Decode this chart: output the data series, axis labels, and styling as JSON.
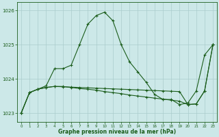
{
  "xlabel": "Graphe pression niveau de la mer (hPa)",
  "background_color": "#cce8e8",
  "line_color": "#1a5c1a",
  "grid_color": "#aacccc",
  "tick_label_color": "#1a5c1a",
  "xlim": [
    -0.5,
    23.5
  ],
  "ylim": [
    1022.75,
    1026.25
  ],
  "yticks": [
    1023,
    1024,
    1025,
    1026
  ],
  "xticks": [
    0,
    1,
    2,
    3,
    4,
    5,
    6,
    7,
    8,
    9,
    10,
    11,
    12,
    13,
    14,
    15,
    16,
    17,
    18,
    19,
    20,
    21,
    22,
    23
  ],
  "series_main": [
    1023.0,
    1023.6,
    1023.7,
    1023.8,
    1024.3,
    1024.3,
    1024.4,
    1025.0,
    1025.6,
    1025.85,
    1025.95,
    1025.7,
    1025.0,
    1024.5,
    1024.2,
    1023.9,
    1023.55,
    1023.4,
    1023.4,
    1023.25,
    1023.3,
    1023.65,
    1024.7,
    1025.0
  ],
  "series_flat": [
    1023.0,
    1023.6,
    1023.7,
    1023.75,
    1023.78,
    1023.78,
    1023.75,
    1023.72,
    1023.7,
    1023.67,
    1023.63,
    1023.6,
    1023.57,
    1023.53,
    1023.5,
    1023.47,
    1023.44,
    1023.41,
    1023.38,
    1023.35,
    1023.25,
    1023.27,
    1023.65,
    1025.0
  ],
  "series_diag": [
    1023.0,
    1023.6,
    1023.7,
    1023.75,
    1023.78,
    1023.77,
    1023.76,
    1023.75,
    1023.74,
    1023.73,
    1023.72,
    1023.71,
    1023.7,
    1023.69,
    1023.68,
    1023.67,
    1023.66,
    1023.65,
    1023.64,
    1023.63,
    1023.25,
    1023.27,
    1023.65,
    1025.0
  ]
}
